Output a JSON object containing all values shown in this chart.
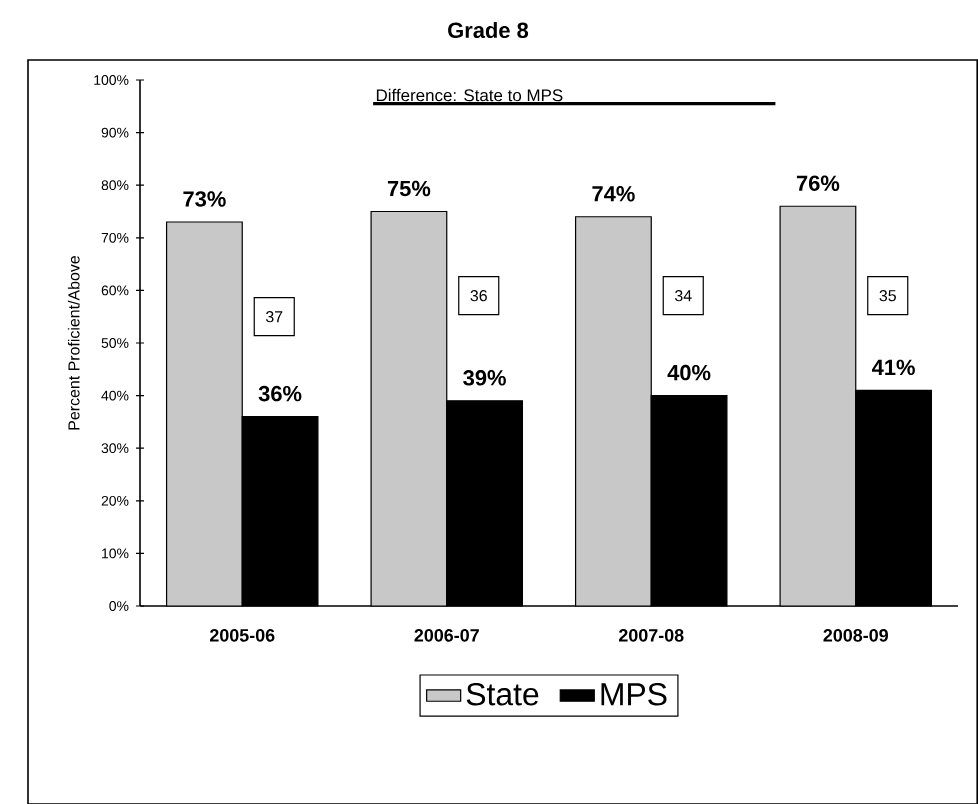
{
  "chart_data": {
    "type": "bar",
    "title": "Grade 8",
    "ylabel": "Percent Proficient/Above",
    "categories": [
      "2005-06",
      "2006-07",
      "2007-08",
      "2008-09"
    ],
    "series": [
      {
        "name": "State",
        "color": "#c8c8c8",
        "values": [
          73,
          75,
          74,
          76
        ],
        "value_labels": [
          "73%",
          "75%",
          "74%",
          "76%"
        ]
      },
      {
        "name": "MPS",
        "color": "#000000",
        "values": [
          36,
          39,
          40,
          41
        ],
        "value_labels": [
          "36%",
          "39%",
          "40%",
          "41%"
        ]
      }
    ],
    "ylim": [
      0,
      100
    ],
    "yticks": [
      {
        "value": 0,
        "label": "0%"
      },
      {
        "value": 10,
        "label": "10%"
      },
      {
        "value": 20,
        "label": "20%"
      },
      {
        "value": 30,
        "label": "30%"
      },
      {
        "value": 40,
        "label": "40%"
      },
      {
        "value": 50,
        "label": "50%"
      },
      {
        "value": 60,
        "label": "60%"
      },
      {
        "value": 70,
        "label": "70%"
      },
      {
        "value": 80,
        "label": "80%"
      },
      {
        "value": 90,
        "label": "90%"
      },
      {
        "value": 100,
        "label": "100%"
      }
    ],
    "annotations": [
      "Difference: State to MPS",
      {
        "text": "37",
        "x": "2005-06",
        "y": 55
      },
      {
        "text": "36",
        "x": "2006-07",
        "y": 59
      },
      {
        "text": "34",
        "x": "2007-08",
        "y": 59
      },
      {
        "text": "35",
        "x": "2008-09",
        "y": 59
      }
    ],
    "grid": false,
    "legend": "bottom"
  }
}
